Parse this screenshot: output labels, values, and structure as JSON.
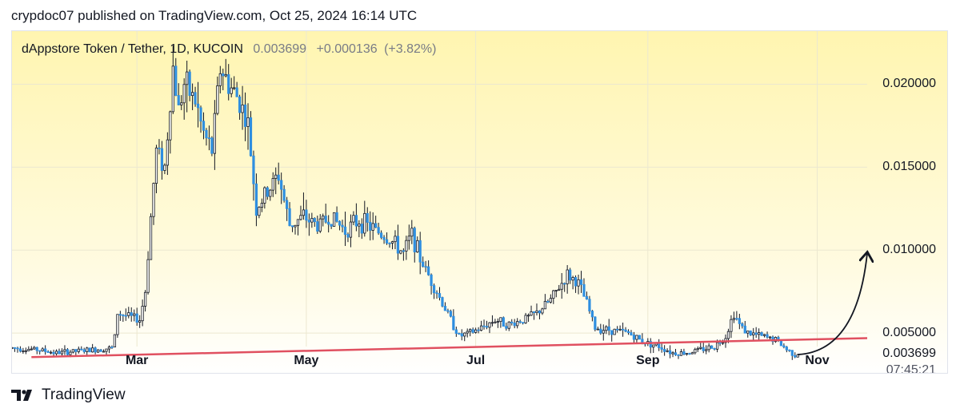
{
  "header": {
    "text": "crypdoc07 published on TradingView.com, Oct 25, 2024 16:14 UTC"
  },
  "legend": {
    "symbol": "dAppstore Token / Tether, 1D, KUCOIN",
    "last": "0.003699",
    "change": "+0.000136",
    "change_pct": "(+3.82%)"
  },
  "yaxis": {
    "ticks": [
      "0.020000",
      "0.015000",
      "0.010000",
      "0.005000"
    ],
    "tick_values": [
      0.02,
      0.015,
      0.01,
      0.005
    ]
  },
  "xaxis": {
    "ticks": [
      "Mar",
      "May",
      "Jul",
      "Sep",
      "Nov"
    ]
  },
  "last_price_label": "0.003699",
  "countdown": "07:45:21",
  "footer": {
    "brand": "TradingView"
  },
  "colors": {
    "up": "#ffffff",
    "down": "#2f8fe0",
    "wick": "#131722",
    "trendline": "#e05060",
    "bg_top": "#fff5b8",
    "bg_bottom": "#ffffff",
    "arrow": "#131722"
  },
  "chart_data": {
    "type": "candlestick",
    "title": "dAppstore Token / Tether, 1D, KUCOIN",
    "ylim": [
      0.0025,
      0.0232
    ],
    "x_range": [
      "2024-01-16",
      "2024-11-19"
    ],
    "ohlc_path": [
      [
        "2024-01-16",
        0.0041
      ],
      [
        "2024-01-25",
        0.004
      ],
      [
        "2024-02-01",
        0.0038
      ],
      [
        "2024-02-08",
        0.0039
      ],
      [
        "2024-02-15",
        0.004
      ],
      [
        "2024-02-21",
        0.0041
      ],
      [
        "2024-02-22",
        0.0048
      ],
      [
        "2024-02-23",
        0.0062
      ],
      [
        "2024-02-27",
        0.006
      ],
      [
        "2024-03-02",
        0.0058
      ],
      [
        "2024-03-04",
        0.0075
      ],
      [
        "2024-03-06",
        0.012
      ],
      [
        "2024-03-08",
        0.016
      ],
      [
        "2024-03-11",
        0.015
      ],
      [
        "2024-03-14",
        0.021
      ],
      [
        "2024-03-16",
        0.0185
      ],
      [
        "2024-03-18",
        0.02
      ],
      [
        "2024-03-22",
        0.019
      ],
      [
        "2024-03-25",
        0.017
      ],
      [
        "2024-03-28",
        0.016
      ],
      [
        "2024-03-31",
        0.021
      ],
      [
        "2024-04-03",
        0.02
      ],
      [
        "2024-04-07",
        0.019
      ],
      [
        "2024-04-10",
        0.0175
      ],
      [
        "2024-04-13",
        0.0125
      ],
      [
        "2024-04-17",
        0.0135
      ],
      [
        "2024-04-21",
        0.0145
      ],
      [
        "2024-04-25",
        0.0115
      ],
      [
        "2024-04-30",
        0.012
      ],
      [
        "2024-05-05",
        0.0115
      ],
      [
        "2024-05-10",
        0.012
      ],
      [
        "2024-05-15",
        0.0112
      ],
      [
        "2024-05-20",
        0.0118
      ],
      [
        "2024-05-26",
        0.0112
      ],
      [
        "2024-06-01",
        0.0105
      ],
      [
        "2024-06-05",
        0.0098
      ],
      [
        "2024-06-08",
        0.011
      ],
      [
        "2024-06-11",
        0.0095
      ],
      [
        "2024-06-16",
        0.0078
      ],
      [
        "2024-06-22",
        0.0058
      ],
      [
        "2024-06-25",
        0.0048
      ],
      [
        "2024-06-29",
        0.005
      ],
      [
        "2024-07-03",
        0.0053
      ],
      [
        "2024-07-08",
        0.0058
      ],
      [
        "2024-07-13",
        0.0055
      ],
      [
        "2024-07-18",
        0.0058
      ],
      [
        "2024-07-23",
        0.0062
      ],
      [
        "2024-07-28",
        0.007
      ],
      [
        "2024-08-03",
        0.0085
      ],
      [
        "2024-08-07",
        0.008
      ],
      [
        "2024-08-10",
        0.0068
      ],
      [
        "2024-08-13",
        0.0053
      ],
      [
        "2024-08-18",
        0.0052
      ],
      [
        "2024-08-25",
        0.005
      ],
      [
        "2024-08-30",
        0.0045
      ],
      [
        "2024-09-05",
        0.0042
      ],
      [
        "2024-09-10",
        0.0038
      ],
      [
        "2024-09-15",
        0.0038
      ],
      [
        "2024-09-20",
        0.004
      ],
      [
        "2024-09-25",
        0.0042
      ],
      [
        "2024-09-29",
        0.0048
      ],
      [
        "2024-10-02",
        0.0062
      ],
      [
        "2024-10-04",
        0.0055
      ],
      [
        "2024-10-07",
        0.005
      ],
      [
        "2024-10-12",
        0.0048
      ],
      [
        "2024-10-17",
        0.0046
      ],
      [
        "2024-10-21",
        0.004
      ],
      [
        "2024-10-24",
        0.0037
      ],
      [
        "2024-10-25",
        0.003699
      ]
    ],
    "annotations": {
      "trendline": [
        [
          "2024-01-23",
          0.00355
        ],
        [
          "2024-11-19",
          0.00469
        ]
      ],
      "arrow": [
        [
          "2024-10-25",
          0.0037
        ],
        [
          "2024-11-19",
          0.0098
        ]
      ]
    }
  }
}
